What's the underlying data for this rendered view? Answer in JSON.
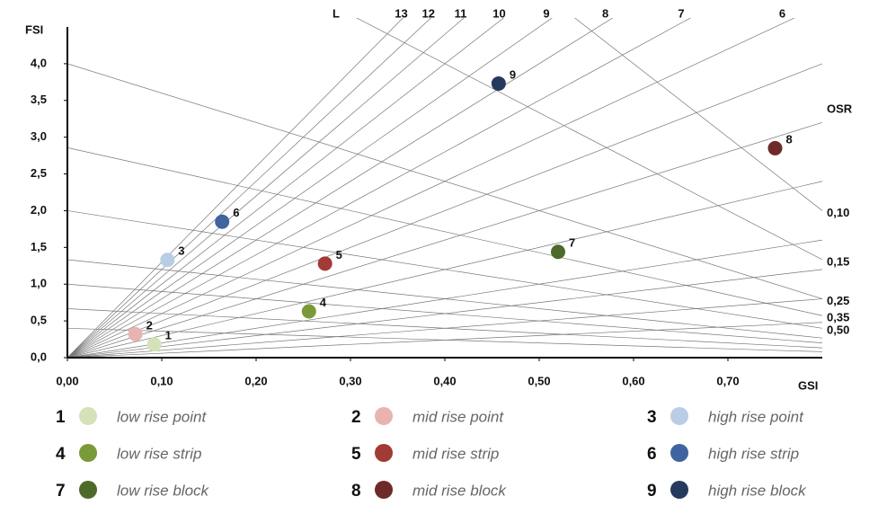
{
  "chart_data": {
    "type": "spacematrix",
    "x_label": "GSI",
    "y_label": "FSI",
    "l_label": "L",
    "osr_label": "OSR",
    "xlim": [
      0,
      0.8
    ],
    "ylim": [
      0,
      4.5
    ],
    "xticks": [
      {
        "value": 0,
        "label": "0,00"
      },
      {
        "value": 0.1,
        "label": "0,10"
      },
      {
        "value": 0.2,
        "label": "0,20"
      },
      {
        "value": 0.3,
        "label": "0,30"
      },
      {
        "value": 0.4,
        "label": "0,40"
      },
      {
        "value": 0.5,
        "label": "0,50"
      },
      {
        "value": 0.6,
        "label": "0,60"
      },
      {
        "value": 0.7,
        "label": "0,70"
      }
    ],
    "yticks": [
      {
        "value": 0,
        "label": "0,0"
      },
      {
        "value": 0.5,
        "label": "0,5"
      },
      {
        "value": 1,
        "label": "1,0"
      },
      {
        "value": 1.5,
        "label": "1,5"
      },
      {
        "value": 2,
        "label": "2,0"
      },
      {
        "value": 2.5,
        "label": "2,5"
      },
      {
        "value": 3,
        "label": "3,0"
      },
      {
        "value": 3.5,
        "label": "3,5"
      },
      {
        "value": 4,
        "label": "4,0"
      }
    ],
    "l_lines": [
      13,
      12,
      11,
      10,
      9,
      8,
      7,
      6
    ],
    "l_unlabeled": [
      5,
      4,
      3,
      2,
      1.5,
      1,
      0.6
    ],
    "osr_lines": [
      {
        "value": 0.1,
        "label": "0,10"
      },
      {
        "value": 0.15,
        "label": "0,15"
      },
      {
        "value": 0.25,
        "label": "0,25"
      },
      {
        "value": 0.35,
        "label": "0,35"
      },
      {
        "value": 0.5,
        "label": "0,50"
      }
    ],
    "osr_unlabeled": [
      0.75,
      1,
      1.5,
      2.5
    ],
    "series": [
      {
        "label": "1",
        "name": "low rise point",
        "color": "#d5e2b9",
        "x": 0.092,
        "y": 0.18
      },
      {
        "label": "2",
        "name": "mid rise point",
        "color": "#e8b4b0",
        "x": 0.072,
        "y": 0.32
      },
      {
        "label": "3",
        "name": "high rise point",
        "color": "#b8cde6",
        "x": 0.106,
        "y": 1.33
      },
      {
        "label": "4",
        "name": "low rise strip",
        "color": "#7a9a3a",
        "x": 0.256,
        "y": 0.63
      },
      {
        "label": "5",
        "name": "mid rise strip",
        "color": "#a23a35",
        "x": 0.273,
        "y": 1.28
      },
      {
        "label": "6",
        "name": "high rise strip",
        "color": "#3f64a0",
        "x": 0.164,
        "y": 1.85
      },
      {
        "label": "7",
        "name": "low rise block",
        "color": "#4d6a2a",
        "x": 0.52,
        "y": 1.44
      },
      {
        "label": "8",
        "name": "mid rise block",
        "color": "#6e2a28",
        "x": 0.75,
        "y": 2.85
      },
      {
        "label": "9",
        "name": "high rise block",
        "color": "#253a5c",
        "x": 0.457,
        "y": 3.73
      }
    ]
  }
}
